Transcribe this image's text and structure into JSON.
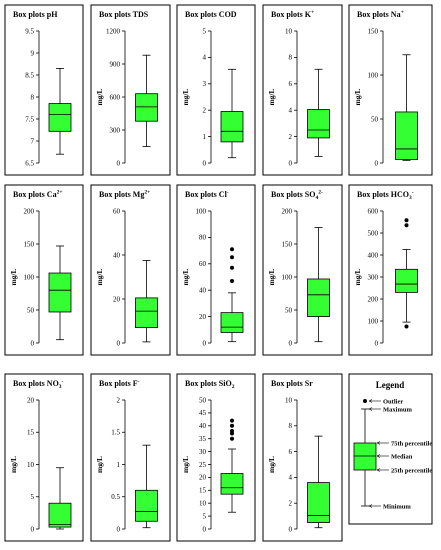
{
  "colors": {
    "box_fill": "#33ff33",
    "stroke": "#000000",
    "background": "#ffffff"
  },
  "chart_data": [
    {
      "type": "box",
      "title": "Box plots pH",
      "ylabel": "",
      "ylim": [
        6.5,
        9.5
      ],
      "ticks": [
        "6.5",
        "7",
        "7.5",
        "8",
        "8.5",
        "9",
        "9.5"
      ],
      "box": {
        "min": 6.7,
        "q1": 7.22,
        "median": 7.6,
        "q3": 7.85,
        "max": 8.65,
        "outliers": []
      }
    },
    {
      "type": "box",
      "title": "Box plots TDS",
      "ylabel": "mg/L",
      "ylim": [
        0,
        1200
      ],
      "ticks": [
        "0",
        "300",
        "600",
        "900",
        "1200"
      ],
      "box": {
        "min": 150,
        "q1": 380,
        "median": 510,
        "q3": 630,
        "max": 980,
        "outliers": []
      }
    },
    {
      "type": "box",
      "title": "Box plots COD",
      "ylabel": "mg/L",
      "ylim": [
        0,
        5
      ],
      "ticks": [
        "0",
        "1",
        "2",
        "3",
        "4",
        "5"
      ],
      "box": {
        "min": 0.2,
        "q1": 0.8,
        "median": 1.2,
        "q3": 1.95,
        "max": 3.55,
        "outliers": []
      }
    },
    {
      "type": "box",
      "title": "Box plots K",
      "title_sup": "+",
      "ylabel": "mg/L",
      "ylim": [
        0,
        10
      ],
      "ticks": [
        "0",
        "2",
        "4",
        "6",
        "8",
        "10"
      ],
      "box": {
        "min": 0.5,
        "q1": 1.9,
        "median": 2.5,
        "q3": 4.05,
        "max": 7.1,
        "outliers": []
      }
    },
    {
      "type": "box",
      "title": "Box plots Na",
      "title_sup": "+",
      "ylabel": "mg/L",
      "ylim": [
        0,
        150
      ],
      "ticks": [
        "0",
        "50",
        "100",
        "150"
      ],
      "box": {
        "min": 3,
        "q1": 4,
        "median": 16,
        "q3": 58,
        "max": 123,
        "outliers": []
      }
    },
    {
      "type": "box",
      "title": "Box plots Ca",
      "title_sup": "2+",
      "ylabel": "mg/L",
      "ylim": [
        0,
        200
      ],
      "ticks": [
        "0",
        "50",
        "100",
        "150",
        "200"
      ],
      "box": {
        "min": 5,
        "q1": 47,
        "median": 80,
        "q3": 106,
        "max": 147,
        "outliers": []
      }
    },
    {
      "type": "box",
      "title": "Box plots Mg",
      "title_sup": "2+",
      "ylabel": "mg/L",
      "ylim": [
        0,
        60
      ],
      "ticks": [
        "0",
        "20",
        "40",
        "60"
      ],
      "box": {
        "min": 0.5,
        "q1": 7,
        "median": 14.5,
        "q3": 20.5,
        "max": 37.5,
        "outliers": []
      }
    },
    {
      "type": "box",
      "title": "Box plots Cl",
      "title_sup": "-",
      "ylabel": "mg/L",
      "ylim": [
        0,
        100
      ],
      "ticks": [
        "0",
        "20",
        "40",
        "60",
        "80",
        "100"
      ],
      "box": {
        "min": 1,
        "q1": 8,
        "median": 12,
        "q3": 23,
        "max": 38,
        "outliers": [
          47,
          57,
          65,
          71
        ]
      }
    },
    {
      "type": "box",
      "title": "Box plots SO",
      "title_sub": "4",
      "title_sup": "2-",
      "ylabel": "mg/L",
      "ylim": [
        0,
        200
      ],
      "ticks": [
        "0",
        "50",
        "100",
        "150",
        "200"
      ],
      "box": {
        "min": 2,
        "q1": 40,
        "median": 73,
        "q3": 97,
        "max": 175,
        "outliers": []
      }
    },
    {
      "type": "box",
      "title": "Box plots HCO",
      "title_sub": "3",
      "title_sup": "-",
      "ylabel": "mg/L",
      "ylim": [
        0,
        600
      ],
      "ticks": [
        "0",
        "100",
        "200",
        "300",
        "400",
        "500",
        "600"
      ],
      "box": {
        "min": 95,
        "q1": 230,
        "median": 268,
        "q3": 335,
        "max": 425,
        "outliers": [
          75,
          535,
          558
        ]
      }
    },
    {
      "type": "box",
      "title": "Box plots NO",
      "title_sub": "3",
      "title_sup": "-",
      "ylabel": "mg/L",
      "ylim": [
        0,
        20
      ],
      "ticks": [
        "0",
        "5",
        "10",
        "15",
        "20"
      ],
      "box": {
        "min": 0,
        "q1": 0.3,
        "median": 0.7,
        "q3": 4,
        "max": 9.5,
        "outliers": []
      }
    },
    {
      "type": "box",
      "title": "Box plots F",
      "title_sup": "-",
      "ylabel": "mg/L",
      "ylim": [
        0,
        2
      ],
      "ticks": [
        "0",
        "0.5",
        "1",
        "1.5",
        "2"
      ],
      "box": {
        "min": 0.02,
        "q1": 0.12,
        "median": 0.27,
        "q3": 0.6,
        "max": 1.3,
        "outliers": []
      }
    },
    {
      "type": "box",
      "title": "Box plots SiO",
      "title_sub": "2",
      "ylabel": "mg/L",
      "ylim": [
        0,
        50
      ],
      "ticks": [
        "0",
        "5",
        "10",
        "15",
        "20",
        "25",
        "30",
        "35",
        "40",
        "45",
        "50"
      ],
      "box": {
        "min": 6.5,
        "q1": 13.5,
        "median": 16,
        "q3": 21.5,
        "max": 31,
        "outliers": [
          35,
          37,
          38,
          40,
          42
        ]
      }
    },
    {
      "type": "box",
      "title": "Box plots Sr",
      "ylabel": "mg/L",
      "ylim": [
        0,
        10
      ],
      "ticks": [
        "0",
        "2",
        "4",
        "6",
        "8",
        "10"
      ],
      "box": {
        "min": 0.1,
        "q1": 0.5,
        "median": 1.05,
        "q3": 3.6,
        "max": 7.2,
        "outliers": []
      }
    }
  ],
  "legend": {
    "title": "Legend",
    "labels": {
      "outlier": "Outlier",
      "maximum": "Maximum",
      "q3": "75th percentile",
      "median": "Median",
      "q1": "25th percentile",
      "minimum": "Minimum"
    }
  }
}
